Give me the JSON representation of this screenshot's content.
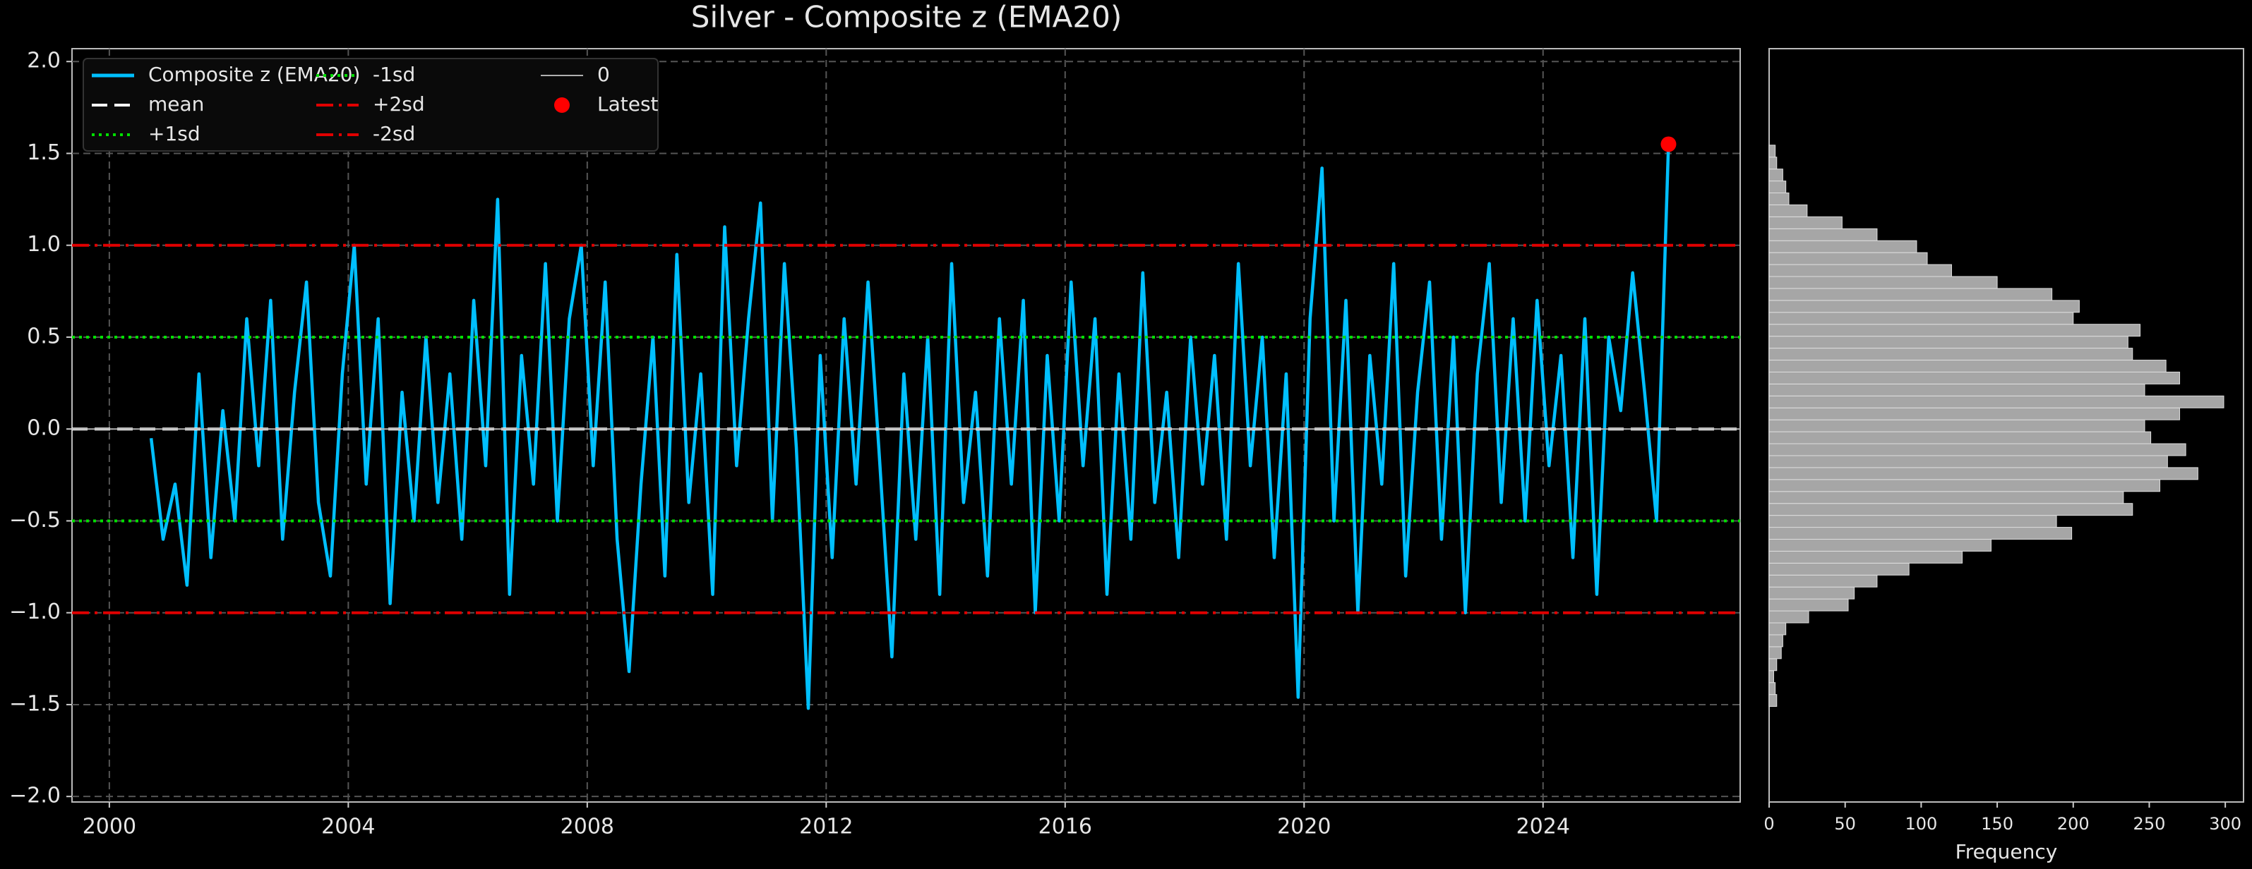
{
  "chart_data": [
    {
      "type": "line",
      "title": "Silver - Composite z (EMA20)",
      "x": [
        2000.7,
        2000.9,
        2001.1,
        2001.3,
        2001.5,
        2001.7,
        2001.9,
        2002.1,
        2002.3,
        2002.5,
        2002.7,
        2002.9,
        2003.1,
        2003.3,
        2003.5,
        2003.7,
        2003.9,
        2004.1,
        2004.3,
        2004.5,
        2004.7,
        2004.9,
        2005.1,
        2005.3,
        2005.5,
        2005.7,
        2005.9,
        2006.1,
        2006.3,
        2006.5,
        2006.7,
        2006.9,
        2007.1,
        2007.3,
        2007.5,
        2007.7,
        2007.9,
        2008.1,
        2008.3,
        2008.5,
        2008.7,
        2008.9,
        2009.1,
        2009.3,
        2009.5,
        2009.7,
        2009.9,
        2010.1,
        2010.3,
        2010.5,
        2010.7,
        2010.9,
        2011.1,
        2011.3,
        2011.5,
        2011.7,
        2011.9,
        2012.1,
        2012.3,
        2012.5,
        2012.7,
        2012.9,
        2013.1,
        2013.3,
        2013.5,
        2013.7,
        2013.9,
        2014.1,
        2014.3,
        2014.5,
        2014.7,
        2014.9,
        2015.1,
        2015.3,
        2015.5,
        2015.7,
        2015.9,
        2016.1,
        2016.3,
        2016.5,
        2016.7,
        2016.9,
        2017.1,
        2017.3,
        2017.5,
        2017.7,
        2017.9,
        2018.1,
        2018.3,
        2018.5,
        2018.7,
        2018.9,
        2019.1,
        2019.3,
        2019.5,
        2019.7,
        2019.9,
        2020.1,
        2020.3,
        2020.5,
        2020.7,
        2020.9,
        2021.1,
        2021.3,
        2021.5,
        2021.7,
        2021.9,
        2022.1,
        2022.3,
        2022.5,
        2022.7,
        2022.9,
        2023.1,
        2023.3,
        2023.5,
        2023.7,
        2023.9,
        2024.1,
        2024.3,
        2024.5,
        2024.7,
        2024.9,
        2025.1,
        2025.3,
        2025.5,
        2025.7,
        2025.9,
        2026.1
      ],
      "series": [
        {
          "name": "Composite z (EMA20)",
          "color": "#00bfff",
          "values": [
            -0.05,
            -0.6,
            -0.3,
            -0.85,
            0.3,
            -0.7,
            0.1,
            -0.5,
            0.6,
            -0.2,
            0.7,
            -0.6,
            0.2,
            0.8,
            -0.4,
            -0.8,
            0.3,
            1.0,
            -0.3,
            0.6,
            -0.95,
            0.2,
            -0.5,
            0.5,
            -0.4,
            0.3,
            -0.6,
            0.7,
            -0.2,
            1.25,
            -0.9,
            0.4,
            -0.3,
            0.9,
            -0.5,
            0.6,
            1.0,
            -0.2,
            0.8,
            -0.6,
            -1.32,
            -0.3,
            0.5,
            -0.8,
            0.95,
            -0.4,
            0.3,
            -0.9,
            1.1,
            -0.2,
            0.6,
            1.23,
            -0.5,
            0.9,
            -0.1,
            -1.52,
            0.4,
            -0.7,
            0.6,
            -0.3,
            0.8,
            -0.2,
            -1.24,
            0.3,
            -0.6,
            0.5,
            -0.9,
            0.9,
            -0.4,
            0.2,
            -0.8,
            0.6,
            -0.3,
            0.7,
            -1.0,
            0.4,
            -0.5,
            0.8,
            -0.2,
            0.6,
            -0.9,
            0.3,
            -0.6,
            0.85,
            -0.4,
            0.2,
            -0.7,
            0.5,
            -0.3,
            0.4,
            -0.6,
            0.9,
            -0.2,
            0.5,
            -0.7,
            0.3,
            -1.46,
            0.6,
            1.42,
            -0.5,
            0.7,
            -1.0,
            0.4,
            -0.3,
            0.9,
            -0.8,
            0.2,
            0.8,
            -0.6,
            0.5,
            -1.0,
            0.3,
            0.9,
            -0.4,
            0.6,
            -0.5,
            0.7,
            -0.2,
            0.4,
            -0.7,
            0.6,
            -0.9,
            0.5,
            0.1,
            0.85,
            0.2,
            -0.5,
            1.55
          ]
        }
      ],
      "reference_lines": [
        {
          "name": "mean",
          "value": 0,
          "color": "#ffffff",
          "style": "dashed"
        },
        {
          "name": "+1sd",
          "value": 0.5,
          "color": "#00e000",
          "style": "dotted"
        },
        {
          "name": "-1sd",
          "value": -0.5,
          "color": "#00e000",
          "style": "dotted"
        },
        {
          "name": "+2sd",
          "value": 1.0,
          "color": "#e00000",
          "style": "dashdot"
        },
        {
          "name": "-2sd",
          "value": -1.0,
          "color": "#e00000",
          "style": "dashdot"
        },
        {
          "name": "0",
          "value": 0,
          "color": "#b0b0b0",
          "style": "solid"
        }
      ],
      "latest": {
        "name": "Latest",
        "x": 2026.1,
        "y": 1.55,
        "color": "#ff0000"
      },
      "xlim": [
        1999.375,
        2027.3
      ],
      "xticks": [
        2000,
        2004,
        2008,
        2012,
        2016,
        2020,
        2024
      ],
      "ylim": [
        -2.03,
        2.07
      ],
      "yticks": [
        -2.0,
        -1.5,
        -1.0,
        -0.5,
        0.0,
        0.5,
        1.0,
        1.5,
        2.0
      ],
      "ytick_labels": [
        "−2.0",
        "−1.5",
        "−1.0",
        "−0.5",
        "0.0",
        "0.5",
        "1.0",
        "1.5",
        "2.0"
      ],
      "grid": true,
      "legend": "upper left"
    },
    {
      "type": "histogram",
      "orientation": "horizontal",
      "xlabel": "Frequency",
      "color": "#a6a6a6",
      "bins": [
        -1.51,
        -1.445,
        -1.38,
        -1.315,
        -1.25,
        -1.185,
        -1.12,
        -1.055,
        -0.99,
        -0.925,
        -0.86,
        -0.795,
        -0.73,
        -0.665,
        -0.6,
        -0.535,
        -0.47,
        -0.405,
        -0.34,
        -0.275,
        -0.21,
        -0.145,
        -0.08,
        -0.015,
        0.05,
        0.115,
        0.18,
        0.245,
        0.31,
        0.375,
        0.44,
        0.505,
        0.57,
        0.635,
        0.7,
        0.765,
        0.83,
        0.895,
        0.96,
        1.025,
        1.09,
        1.155,
        1.22,
        1.285,
        1.35,
        1.415,
        1.48,
        1.545
      ],
      "values": [
        5,
        4,
        3,
        5,
        8,
        9,
        11,
        26,
        52,
        56,
        71,
        92,
        127,
        146,
        199,
        189,
        239,
        233,
        257,
        282,
        262,
        274,
        251,
        247,
        270,
        299,
        247,
        270,
        261,
        239,
        236,
        244,
        200,
        204,
        186,
        150,
        120,
        104,
        97,
        71,
        48,
        25,
        13,
        11,
        9,
        5,
        4
      ],
      "xlim": [
        0,
        312
      ],
      "xticks": [
        0,
        50,
        100,
        150,
        200,
        250,
        300
      ],
      "ylim": [
        -2.03,
        2.07
      ]
    }
  ]
}
